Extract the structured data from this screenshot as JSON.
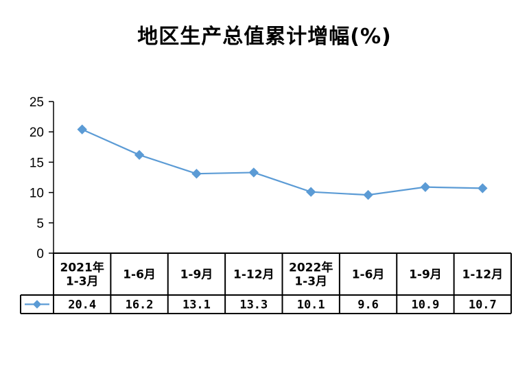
{
  "chart_data": {
    "type": "line",
    "title": "地区生产总值累计增幅(%)",
    "xlabel": "",
    "ylabel": "",
    "ylim": [
      0,
      25
    ],
    "yticks": [
      0,
      5,
      10,
      15,
      20,
      25
    ],
    "grid": false,
    "legend": "data-table",
    "categories": [
      [
        "2021年",
        "1-3月"
      ],
      [
        "1-6月"
      ],
      [
        "1-9月"
      ],
      [
        "1-12月"
      ],
      [
        "2022年",
        "1-3月"
      ],
      [
        "1-6月"
      ],
      [
        "1-9月"
      ],
      [
        "1-12月"
      ]
    ],
    "series": [
      {
        "values": [
          20.4,
          16.2,
          13.1,
          13.3,
          10.1,
          9.6,
          10.9,
          10.7
        ],
        "labels": [
          "20.4",
          "16.2",
          "13.1",
          "13.3",
          "10.1",
          "9.6",
          "10.9",
          "10.7"
        ],
        "color": "#5b9bd5"
      }
    ]
  }
}
